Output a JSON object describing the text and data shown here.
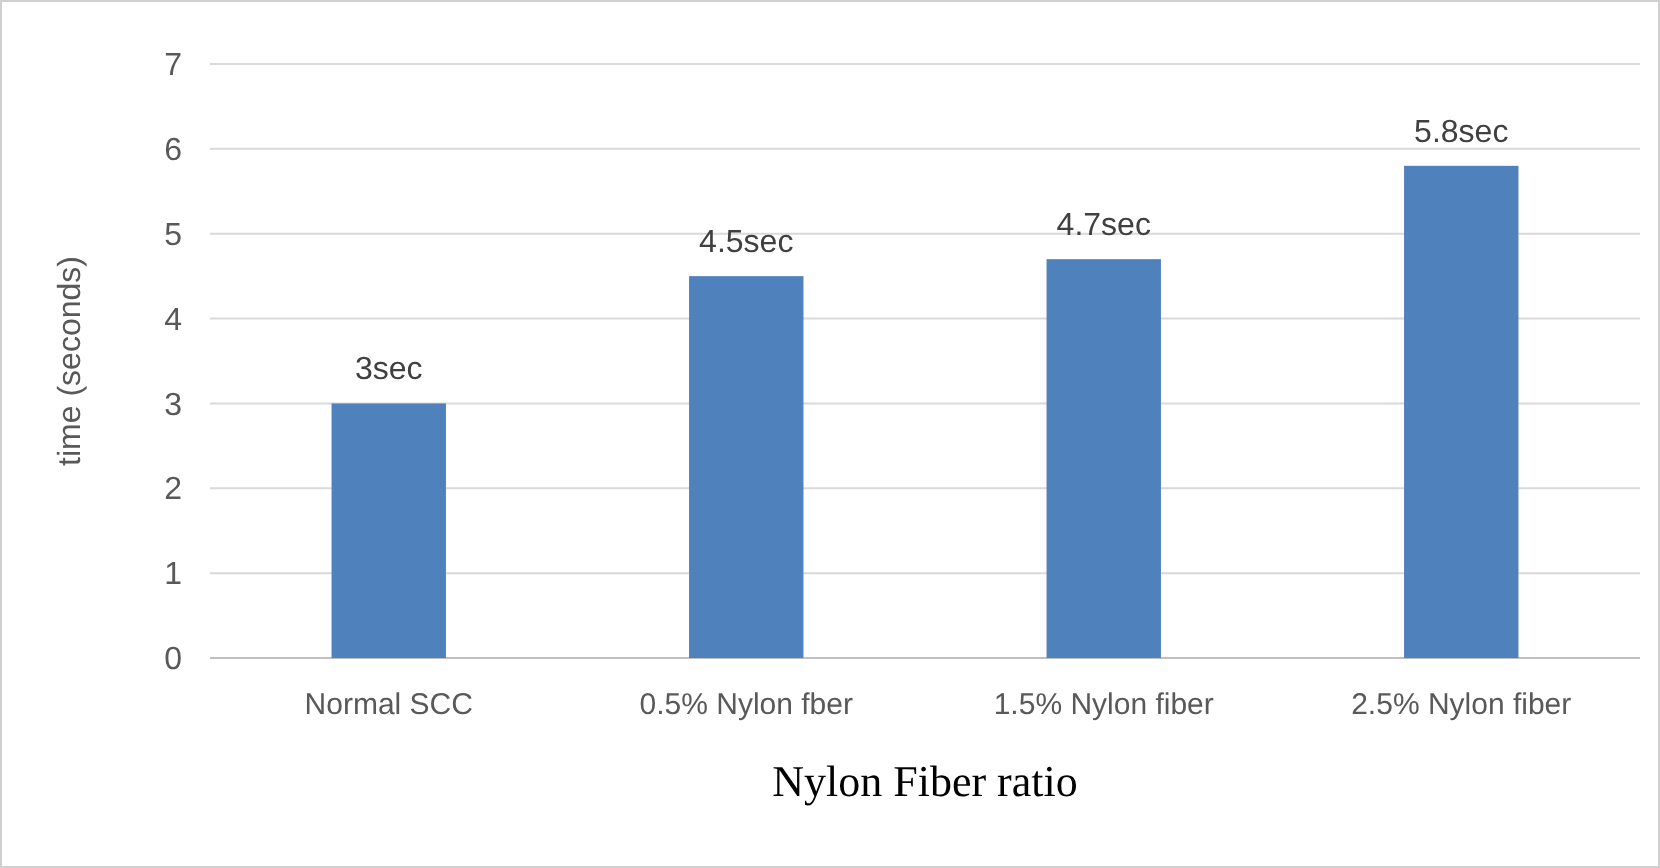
{
  "chart_data": {
    "type": "bar",
    "xlabel": "Nylon Fiber ratio",
    "ylabel": "time (seconds)",
    "categories": [
      "Normal SCC",
      "0.5% Nylon fber",
      "1.5% Nylon fiber",
      "2.5% Nylon fiber"
    ],
    "values": [
      3,
      4.5,
      4.7,
      5.8
    ],
    "value_labels": [
      "3sec",
      "4.5sec",
      "4.7sec",
      "5.8sec"
    ],
    "color": "#4f81bd",
    "ylim": [
      0,
      7
    ],
    "yticks": [
      0,
      1,
      2,
      3,
      4,
      5,
      6,
      7
    ],
    "grid": "y"
  }
}
